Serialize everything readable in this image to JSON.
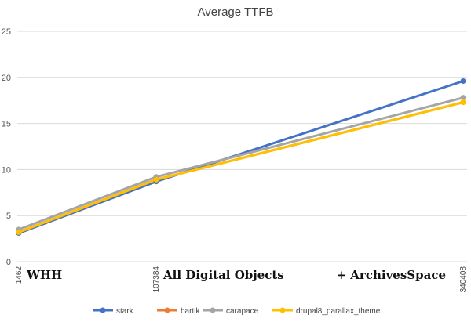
{
  "chart_data": {
    "type": "line",
    "title": "Average TTFB",
    "xlabel": "",
    "ylabel": "",
    "x": [
      1462,
      107384,
      340408
    ],
    "x_tick_labels": [
      "1462",
      "107384",
      "340408"
    ],
    "category_labels": [
      "WHH",
      "All Digital Objects",
      "+ ArchivesSpace"
    ],
    "ylim": [
      0,
      25
    ],
    "y_ticks": [
      0,
      5,
      10,
      15,
      20,
      25
    ],
    "grid": true,
    "legend_position": "bottom",
    "series": [
      {
        "name": "stark",
        "color": "#4472C4",
        "values": [
          3.1,
          8.7,
          19.6
        ]
      },
      {
        "name": "bartik",
        "color": "#ED7D31",
        "values": [
          3.2,
          8.9,
          17.3
        ]
      },
      {
        "name": "carapace",
        "color": "#A5A5A5",
        "values": [
          3.5,
          9.2,
          17.8
        ]
      },
      {
        "name": "drupal8_parallax_theme",
        "color": "#FFC000",
        "values": [
          3.2,
          8.9,
          17.3
        ]
      }
    ]
  }
}
